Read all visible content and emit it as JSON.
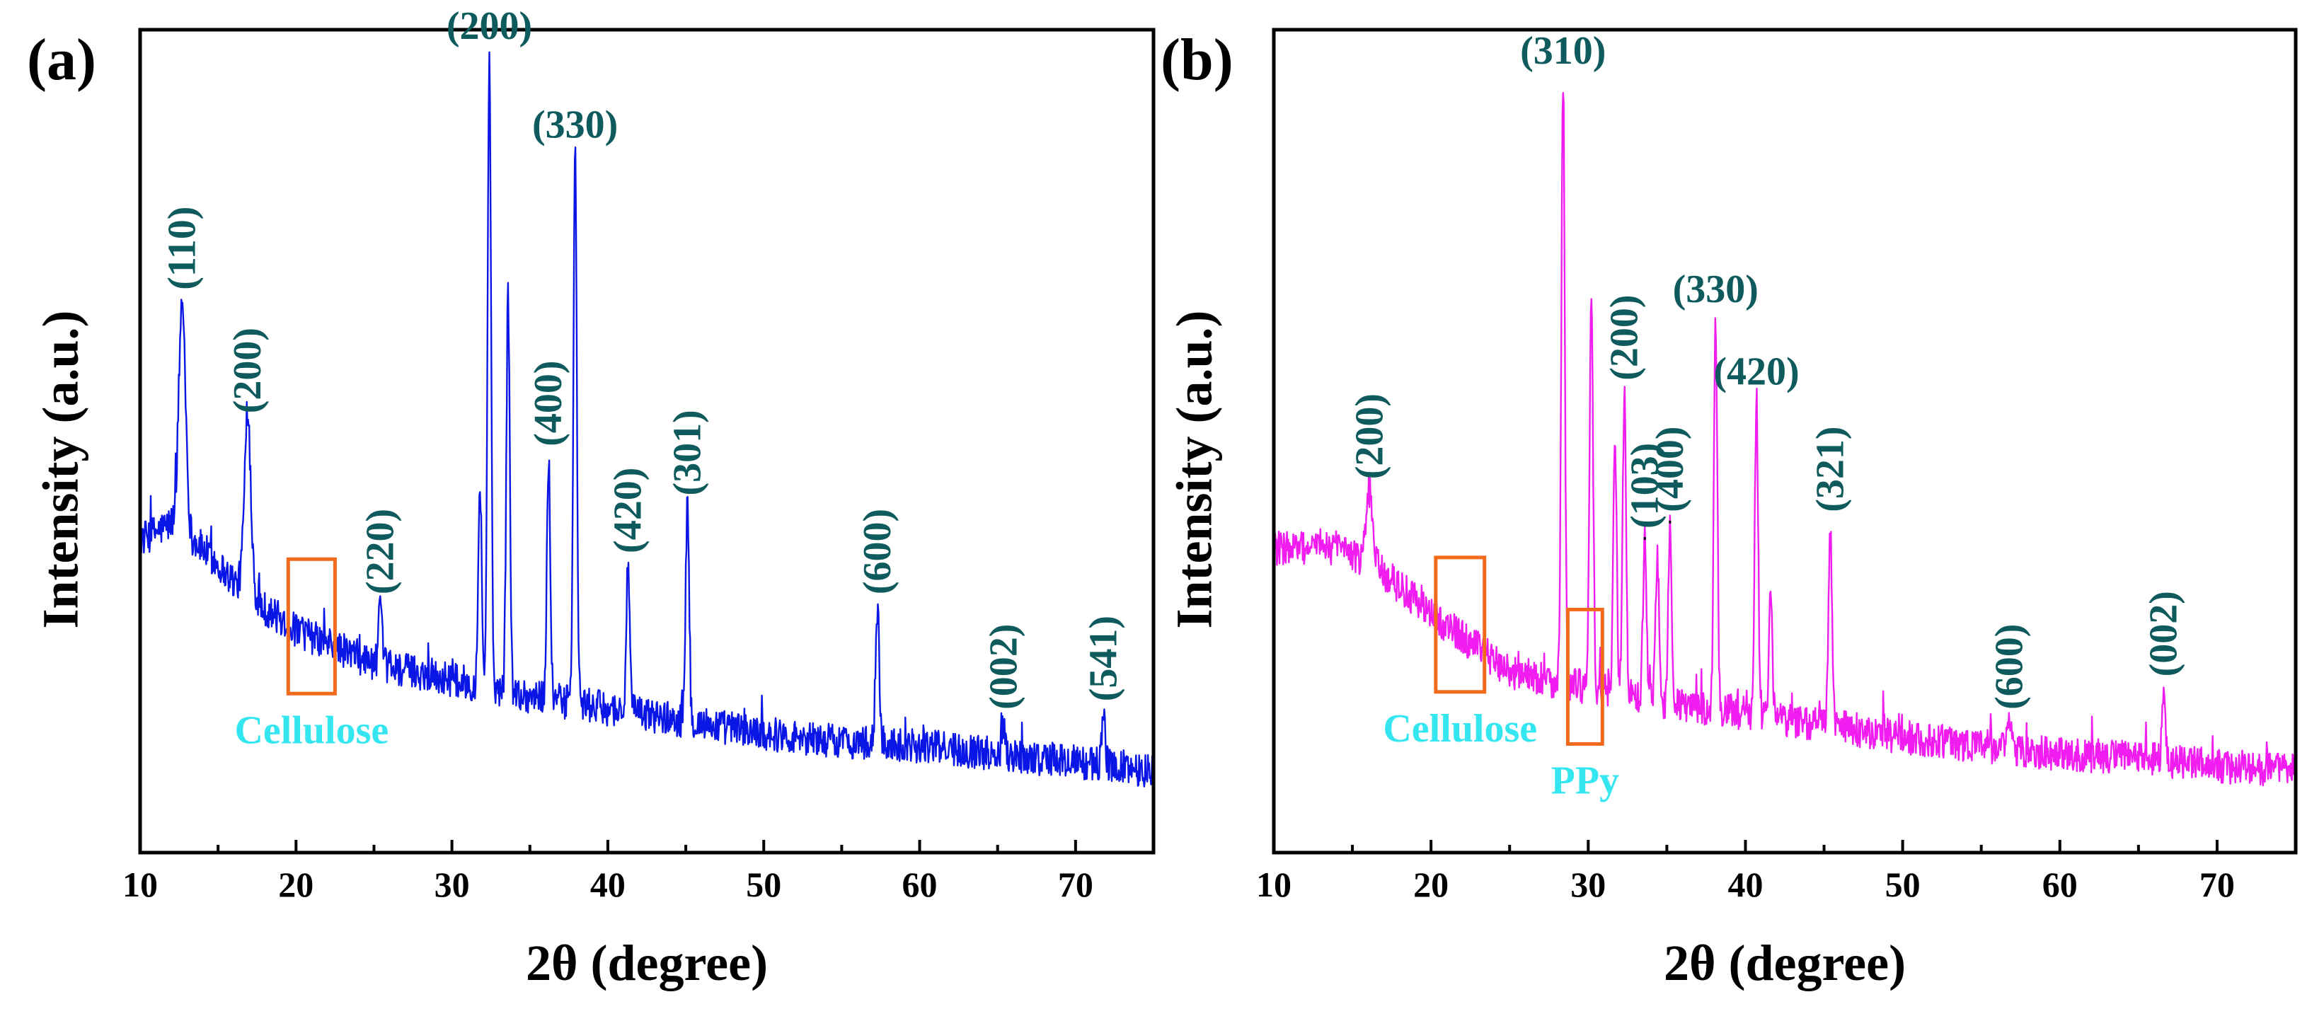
{
  "colors": {
    "panel_a_trace": "#0a16e6",
    "panel_b_trace": "#f01cf0",
    "peak_label": "#0e5a5c",
    "region_box": "#f26b1d",
    "region_label": "#34e6f0",
    "axis": "#000000"
  },
  "chart_data": [
    {
      "type": "line",
      "panel_label": "(a)",
      "xlabel": "2θ (degree)",
      "ylabel": "Intensity (a.u.)",
      "xlim": [
        10,
        75
      ],
      "ylim": [
        0,
        100
      ],
      "xticks": [
        10,
        20,
        30,
        40,
        50,
        60,
        70
      ],
      "baseline": [
        [
          10,
          38
        ],
        [
          12,
          40
        ],
        [
          14,
          37
        ],
        [
          17,
          31
        ],
        [
          20,
          27
        ],
        [
          25,
          23
        ],
        [
          30,
          21
        ],
        [
          35,
          19
        ],
        [
          40,
          17.5
        ],
        [
          45,
          16
        ],
        [
          50,
          14.5
        ],
        [
          55,
          13.5
        ],
        [
          60,
          13
        ],
        [
          65,
          12
        ],
        [
          70,
          11
        ],
        [
          75,
          10
        ]
      ],
      "peaks": [
        {
          "x": 12.7,
          "y": 67,
          "label": "(110)",
          "label_rotated": true
        },
        {
          "x": 16.9,
          "y": 52,
          "label": "(200)",
          "label_rotated": true
        },
        {
          "x": 25.4,
          "y": 30,
          "label": "(220)",
          "label_rotated": true
        },
        {
          "x": 31.8,
          "y": 45
        },
        {
          "x": 32.4,
          "y": 97,
          "label": "(200)",
          "label_rotated": false
        },
        {
          "x": 33.6,
          "y": 68
        },
        {
          "x": 36.2,
          "y": 48,
          "label": "(400)",
          "label_rotated": true
        },
        {
          "x": 37.9,
          "y": 85,
          "label": "(330)",
          "label_rotated": false
        },
        {
          "x": 41.3,
          "y": 35,
          "label": "(420)",
          "label_rotated": true
        },
        {
          "x": 45.1,
          "y": 42,
          "label": "(301)",
          "label_rotated": true
        },
        {
          "x": 57.3,
          "y": 30,
          "label": "(600)",
          "label_rotated": true
        },
        {
          "x": 65.4,
          "y": 16,
          "label": "(002)",
          "label_rotated": true
        },
        {
          "x": 71.8,
          "y": 17,
          "label": "(541)",
          "label_rotated": true
        }
      ],
      "regions": [
        {
          "x_start": 19.5,
          "x_end": 22.5,
          "label": "Cellulose"
        }
      ]
    },
    {
      "type": "line",
      "panel_label": "(b)",
      "xlabel": "2θ (degree)",
      "ylabel": "Intensity (a.u.)",
      "xlim": [
        10,
        75
      ],
      "ylim": [
        0,
        100
      ],
      "xticks": [
        10,
        20,
        30,
        40,
        50,
        60,
        70
      ],
      "baseline": [
        [
          10,
          37
        ],
        [
          14,
          37
        ],
        [
          17,
          34
        ],
        [
          20,
          29
        ],
        [
          25,
          22
        ],
        [
          30,
          20
        ],
        [
          35,
          18
        ],
        [
          40,
          17
        ],
        [
          45,
          15.5
        ],
        [
          50,
          14
        ],
        [
          55,
          13
        ],
        [
          60,
          12
        ],
        [
          65,
          11.5
        ],
        [
          70,
          10.5
        ],
        [
          75,
          10
        ]
      ],
      "peaks": [
        {
          "x": 16.1,
          "y": 44,
          "label": "(200)",
          "label_rotated": true
        },
        {
          "x": 28.4,
          "y": 94,
          "label": "(310)",
          "label_rotated": false
        },
        {
          "x": 30.2,
          "y": 68
        },
        {
          "x": 31.7,
          "y": 50
        },
        {
          "x": 32.3,
          "y": 56,
          "label": "(200)",
          "label_rotated": true
        },
        {
          "x": 33.6,
          "y": 38,
          "label": "(103)",
          "label_rotated": true
        },
        {
          "x": 34.4,
          "y": 36
        },
        {
          "x": 35.2,
          "y": 40,
          "label": "(400)",
          "label_rotated": true
        },
        {
          "x": 38.1,
          "y": 65,
          "label": "(330)",
          "label_rotated": false
        },
        {
          "x": 40.7,
          "y": 55,
          "label": "(420)",
          "label_rotated": false
        },
        {
          "x": 41.6,
          "y": 33
        },
        {
          "x": 45.4,
          "y": 40,
          "label": "(321)",
          "label_rotated": true
        },
        {
          "x": 56.8,
          "y": 16,
          "label": "(600)",
          "label_rotated": true
        },
        {
          "x": 66.6,
          "y": 20,
          "label": "(002)",
          "label_rotated": true
        }
      ],
      "regions": [
        {
          "x_start": 20.3,
          "x_end": 23.4,
          "label": "Cellulose"
        },
        {
          "x_start": 28.7,
          "x_end": 30.9,
          "label": "PPy"
        }
      ]
    }
  ]
}
